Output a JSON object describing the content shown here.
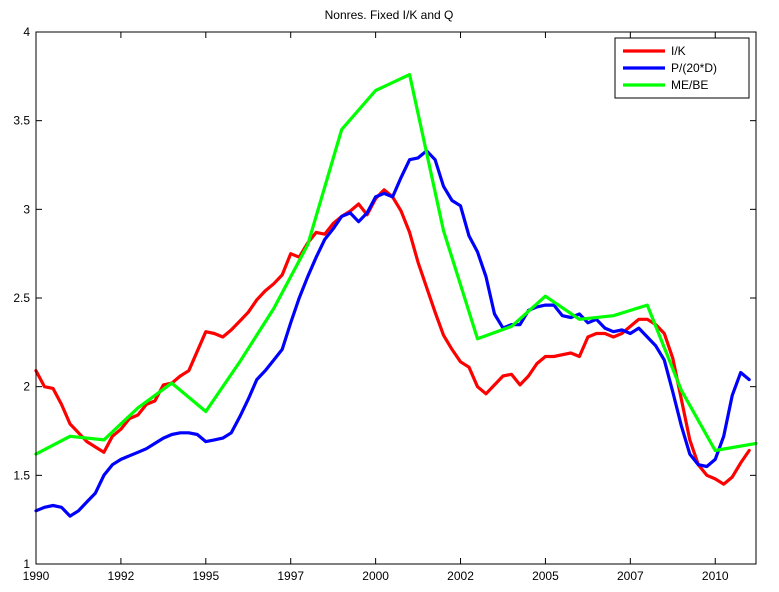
{
  "chart_data": {
    "type": "line",
    "title": "Nonres. Fixed I/K and Q",
    "xlabel": "",
    "ylabel": "",
    "xlim": [
      1990,
      2011.2
    ],
    "ylim": [
      1,
      4
    ],
    "x_ticks": [
      1990,
      1992.5,
      1995,
      1997.5,
      2000,
      2002.5,
      2005,
      2007.5,
      2010
    ],
    "x_tick_labels": [
      "1990",
      "1992",
      "1995",
      "1997",
      "2000",
      "2002",
      "2005",
      "2007",
      "2010"
    ],
    "y_ticks": [
      1,
      1.5,
      2,
      2.5,
      3,
      3.5,
      4
    ],
    "y_tick_labels": [
      "1",
      "1.5",
      "2",
      "2.5",
      "3",
      "3.5",
      "4"
    ],
    "grid": false,
    "legend_position": "top-right",
    "series": [
      {
        "name": "I/K",
        "color": "#ff0000",
        "points": [
          [
            1990.0,
            2.09
          ],
          [
            1990.25,
            2.0
          ],
          [
            1990.5,
            1.99
          ],
          [
            1990.75,
            1.9
          ],
          [
            1991.0,
            1.79
          ],
          [
            1991.25,
            1.74
          ],
          [
            1991.5,
            1.69
          ],
          [
            1991.75,
            1.66
          ],
          [
            1992.0,
            1.63
          ],
          [
            1992.25,
            1.72
          ],
          [
            1992.5,
            1.76
          ],
          [
            1992.75,
            1.82
          ],
          [
            1993.0,
            1.84
          ],
          [
            1993.25,
            1.9
          ],
          [
            1993.5,
            1.92
          ],
          [
            1993.75,
            2.01
          ],
          [
            1994.0,
            2.02
          ],
          [
            1994.25,
            2.06
          ],
          [
            1994.5,
            2.09
          ],
          [
            1994.75,
            2.2
          ],
          [
            1995.0,
            2.31
          ],
          [
            1995.25,
            2.3
          ],
          [
            1995.5,
            2.28
          ],
          [
            1995.75,
            2.32
          ],
          [
            1996.0,
            2.37
          ],
          [
            1996.25,
            2.42
          ],
          [
            1996.5,
            2.49
          ],
          [
            1996.75,
            2.54
          ],
          [
            1997.0,
            2.58
          ],
          [
            1997.25,
            2.63
          ],
          [
            1997.5,
            2.75
          ],
          [
            1997.75,
            2.73
          ],
          [
            1998.0,
            2.81
          ],
          [
            1998.25,
            2.87
          ],
          [
            1998.5,
            2.86
          ],
          [
            1998.75,
            2.92
          ],
          [
            1999.0,
            2.96
          ],
          [
            1999.25,
            2.99
          ],
          [
            1999.5,
            3.03
          ],
          [
            1999.75,
            2.97
          ],
          [
            2000.0,
            3.06
          ],
          [
            2000.25,
            3.11
          ],
          [
            2000.5,
            3.07
          ],
          [
            2000.75,
            2.99
          ],
          [
            2001.0,
            2.87
          ],
          [
            2001.25,
            2.7
          ],
          [
            2001.5,
            2.56
          ],
          [
            2001.75,
            2.42
          ],
          [
            2002.0,
            2.29
          ],
          [
            2002.25,
            2.21
          ],
          [
            2002.5,
            2.14
          ],
          [
            2002.75,
            2.11
          ],
          [
            2003.0,
            2.0
          ],
          [
            2003.25,
            1.96
          ],
          [
            2003.5,
            2.01
          ],
          [
            2003.75,
            2.06
          ],
          [
            2004.0,
            2.07
          ],
          [
            2004.25,
            2.01
          ],
          [
            2004.5,
            2.06
          ],
          [
            2004.75,
            2.13
          ],
          [
            2005.0,
            2.17
          ],
          [
            2005.25,
            2.17
          ],
          [
            2005.5,
            2.18
          ],
          [
            2005.75,
            2.19
          ],
          [
            2006.0,
            2.17
          ],
          [
            2006.25,
            2.28
          ],
          [
            2006.5,
            2.3
          ],
          [
            2006.75,
            2.3
          ],
          [
            2007.0,
            2.28
          ],
          [
            2007.25,
            2.3
          ],
          [
            2007.5,
            2.34
          ],
          [
            2007.75,
            2.38
          ],
          [
            2008.0,
            2.38
          ],
          [
            2008.25,
            2.35
          ],
          [
            2008.5,
            2.3
          ],
          [
            2008.75,
            2.16
          ],
          [
            2009.0,
            1.93
          ],
          [
            2009.25,
            1.7
          ],
          [
            2009.5,
            1.56
          ],
          [
            2009.75,
            1.5
          ],
          [
            2010.0,
            1.48
          ],
          [
            2010.25,
            1.45
          ],
          [
            2010.5,
            1.49
          ],
          [
            2010.75,
            1.57
          ],
          [
            2011.0,
            1.64
          ]
        ]
      },
      {
        "name": "P/(20*D)",
        "color": "#0000ff",
        "points": [
          [
            1990.0,
            1.3
          ],
          [
            1990.25,
            1.32
          ],
          [
            1990.5,
            1.33
          ],
          [
            1990.75,
            1.32
          ],
          [
            1991.0,
            1.27
          ],
          [
            1991.25,
            1.3
          ],
          [
            1991.5,
            1.35
          ],
          [
            1991.75,
            1.4
          ],
          [
            1992.0,
            1.5
          ],
          [
            1992.25,
            1.56
          ],
          [
            1992.5,
            1.59
          ],
          [
            1992.75,
            1.61
          ],
          [
            1993.0,
            1.63
          ],
          [
            1993.25,
            1.65
          ],
          [
            1993.5,
            1.68
          ],
          [
            1993.75,
            1.71
          ],
          [
            1994.0,
            1.73
          ],
          [
            1994.25,
            1.74
          ],
          [
            1994.5,
            1.74
          ],
          [
            1994.75,
            1.73
          ],
          [
            1995.0,
            1.69
          ],
          [
            1995.25,
            1.7
          ],
          [
            1995.5,
            1.71
          ],
          [
            1995.75,
            1.74
          ],
          [
            1996.0,
            1.83
          ],
          [
            1996.25,
            1.93
          ],
          [
            1996.5,
            2.04
          ],
          [
            1996.75,
            2.09
          ],
          [
            1997.0,
            2.15
          ],
          [
            1997.25,
            2.21
          ],
          [
            1997.5,
            2.36
          ],
          [
            1997.75,
            2.5
          ],
          [
            1998.0,
            2.62
          ],
          [
            1998.25,
            2.73
          ],
          [
            1998.5,
            2.83
          ],
          [
            1998.75,
            2.89
          ],
          [
            1999.0,
            2.96
          ],
          [
            1999.25,
            2.98
          ],
          [
            1999.5,
            2.93
          ],
          [
            1999.75,
            2.98
          ],
          [
            2000.0,
            3.07
          ],
          [
            2000.25,
            3.09
          ],
          [
            2000.5,
            3.07
          ],
          [
            2000.75,
            3.18
          ],
          [
            2001.0,
            3.28
          ],
          [
            2001.25,
            3.29
          ],
          [
            2001.5,
            3.33
          ],
          [
            2001.75,
            3.28
          ],
          [
            2002.0,
            3.13
          ],
          [
            2002.25,
            3.05
          ],
          [
            2002.5,
            3.02
          ],
          [
            2002.75,
            2.85
          ],
          [
            2003.0,
            2.76
          ],
          [
            2003.25,
            2.62
          ],
          [
            2003.5,
            2.41
          ],
          [
            2003.75,
            2.33
          ],
          [
            2004.0,
            2.35
          ],
          [
            2004.25,
            2.35
          ],
          [
            2004.5,
            2.43
          ],
          [
            2004.75,
            2.45
          ],
          [
            2005.0,
            2.46
          ],
          [
            2005.25,
            2.46
          ],
          [
            2005.5,
            2.4
          ],
          [
            2005.75,
            2.39
          ],
          [
            2006.0,
            2.41
          ],
          [
            2006.25,
            2.36
          ],
          [
            2006.5,
            2.38
          ],
          [
            2006.75,
            2.33
          ],
          [
            2007.0,
            2.31
          ],
          [
            2007.25,
            2.32
          ],
          [
            2007.5,
            2.3
          ],
          [
            2007.75,
            2.33
          ],
          [
            2008.0,
            2.28
          ],
          [
            2008.25,
            2.23
          ],
          [
            2008.5,
            2.15
          ],
          [
            2008.75,
            1.97
          ],
          [
            2009.0,
            1.78
          ],
          [
            2009.25,
            1.62
          ],
          [
            2009.5,
            1.56
          ],
          [
            2009.75,
            1.55
          ],
          [
            2010.0,
            1.59
          ],
          [
            2010.25,
            1.72
          ],
          [
            2010.5,
            1.95
          ],
          [
            2010.75,
            2.08
          ],
          [
            2011.0,
            2.04
          ]
        ]
      },
      {
        "name": "ME/BE",
        "color": "#00ff00",
        "points": [
          [
            1990.0,
            1.62
          ],
          [
            1991.0,
            1.72
          ],
          [
            1992.0,
            1.7
          ],
          [
            1993.0,
            1.88
          ],
          [
            1994.0,
            2.02
          ],
          [
            1995.0,
            1.86
          ],
          [
            1996.0,
            2.14
          ],
          [
            1997.0,
            2.44
          ],
          [
            1998.0,
            2.8
          ],
          [
            1999.0,
            3.45
          ],
          [
            2000.0,
            3.67
          ],
          [
            2001.0,
            3.76
          ],
          [
            2002.0,
            2.88
          ],
          [
            2003.0,
            2.27
          ],
          [
            2004.0,
            2.34
          ],
          [
            2005.0,
            2.51
          ],
          [
            2006.0,
            2.38
          ],
          [
            2007.0,
            2.4
          ],
          [
            2008.0,
            2.46
          ],
          [
            2009.0,
            1.98
          ],
          [
            2010.0,
            1.64
          ],
          [
            2011.2,
            1.68
          ]
        ]
      }
    ]
  }
}
